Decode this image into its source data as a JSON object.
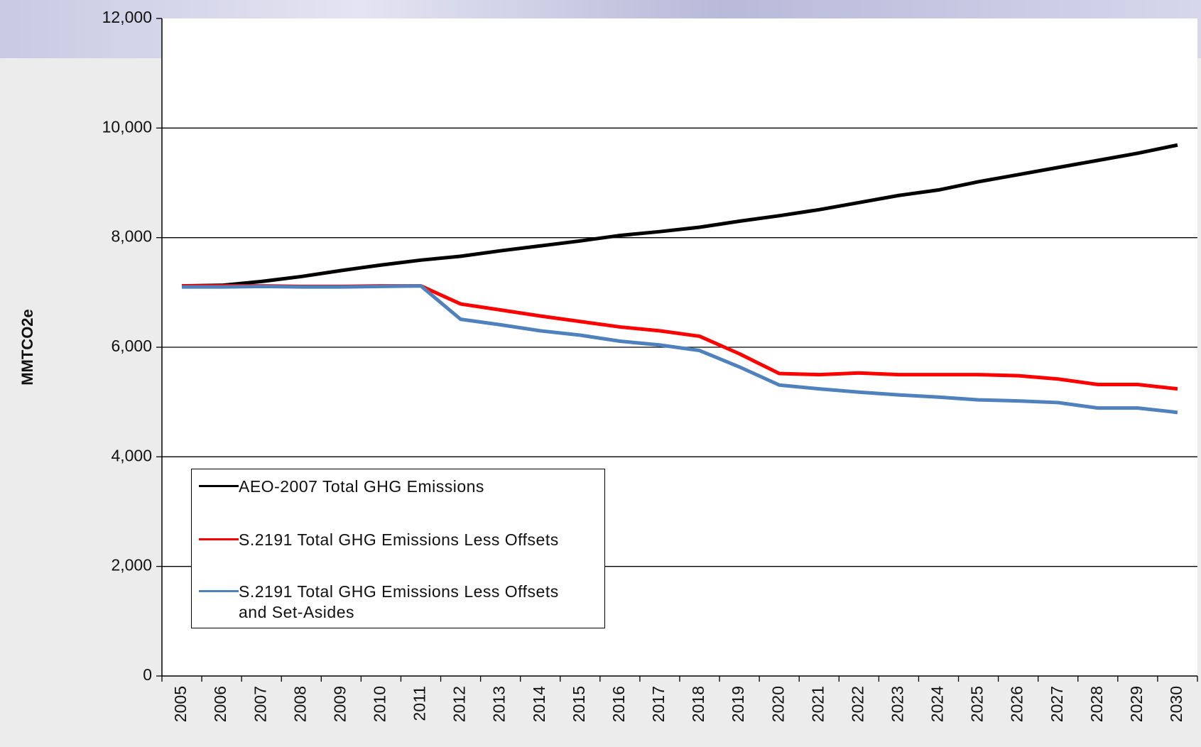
{
  "chart_data": {
    "type": "line",
    "y_label": "MMTCO2e",
    "categories": [
      "2005",
      "2006",
      "2007",
      "2008",
      "2009",
      "2010",
      "2011",
      "2012",
      "2013",
      "2014",
      "2015",
      "2016",
      "2017",
      "2018",
      "2019",
      "2020",
      "2021",
      "2022",
      "2023",
      "2024",
      "2025",
      "2026",
      "2027",
      "2028",
      "2029",
      "2030"
    ],
    "series": [
      {
        "name": "AEO-2007 Total GHG Emissions",
        "color": "#000000",
        "values": [
          7120,
          7130,
          7200,
          7290,
          7400,
          7500,
          7590,
          7660,
          7760,
          7850,
          7940,
          8040,
          8110,
          8190,
          8300,
          8400,
          8510,
          8640,
          8770,
          8870,
          9020,
          9150,
          9280,
          9410,
          9540,
          9690
        ]
      },
      {
        "name": "S.2191 Total GHG Emissions Less Offsets",
        "color": "#ff0000",
        "values": [
          7120,
          7120,
          7120,
          7110,
          7110,
          7120,
          7120,
          6790,
          6680,
          6570,
          6470,
          6370,
          6300,
          6200,
          5880,
          5520,
          5500,
          5530,
          5500,
          5500,
          5500,
          5480,
          5420,
          5320,
          5320,
          5240
        ]
      },
      {
        "name": "S.2191 Total GHG Emissions Less Offsets and Set-Asides",
        "color": "#4f81bd",
        "values": [
          7100,
          7100,
          7110,
          7100,
          7100,
          7110,
          7120,
          6510,
          6410,
          6300,
          6220,
          6110,
          6040,
          5940,
          5640,
          5310,
          5240,
          5180,
          5130,
          5090,
          5040,
          5020,
          4990,
          4890,
          4890,
          4810
        ]
      }
    ],
    "ylim": [
      0,
      12000
    ],
    "yticks": [
      0,
      {
        "value": 2000,
        "label": "2,000"
      },
      {
        "value": 4000,
        "label": "4,000"
      },
      {
        "value": 6000,
        "label": "6,000"
      },
      {
        "value": 8000,
        "label": "8,000"
      },
      {
        "value": 10000,
        "label": "10,000"
      },
      {
        "value": 12000,
        "label": "12,000"
      }
    ],
    "grid": true
  }
}
